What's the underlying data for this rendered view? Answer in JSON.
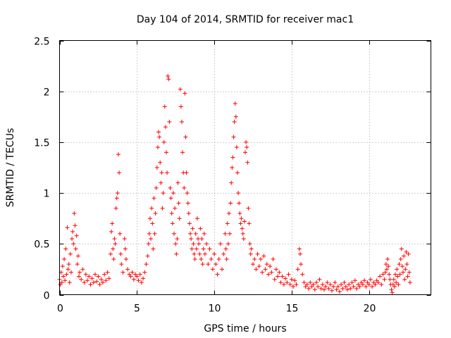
{
  "chart_data": {
    "type": "scatter",
    "title": "Day 104 of 2014, SRMTID for receiver mac1",
    "xlabel": "GPS time / hours",
    "ylabel": "SRMTID / TECUs",
    "xlim": [
      0,
      24
    ],
    "ylim": [
      0,
      2.5
    ],
    "xticks": [
      0,
      5,
      10,
      15,
      20
    ],
    "xtick_labels": [
      "0",
      "5",
      "10",
      "15",
      "20"
    ],
    "yticks": [
      0,
      0.5,
      1,
      1.5,
      2,
      2.5
    ],
    "ytick_labels": [
      "0",
      "0.5",
      "1",
      "1.5",
      "2",
      "2.5"
    ],
    "grid": true,
    "marker": "+",
    "color": "#ff0000",
    "series": [
      {
        "name": "mac1",
        "points": [
          [
            0.0,
            0.15
          ],
          [
            0.05,
            0.1
          ],
          [
            0.1,
            0.22
          ],
          [
            0.15,
            0.12
          ],
          [
            0.2,
            0.28
          ],
          [
            0.25,
            0.18
          ],
          [
            0.3,
            0.35
          ],
          [
            0.35,
            0.14
          ],
          [
            0.4,
            0.45
          ],
          [
            0.45,
            0.2
          ],
          [
            0.5,
            0.66
          ],
          [
            0.55,
            0.25
          ],
          [
            0.6,
            0.3
          ],
          [
            0.65,
            0.12
          ],
          [
            0.7,
            0.4
          ],
          [
            0.75,
            0.22
          ],
          [
            0.8,
            0.55
          ],
          [
            0.85,
            0.62
          ],
          [
            0.9,
            0.5
          ],
          [
            0.95,
            0.8
          ],
          [
            1.0,
            0.68
          ],
          [
            1.05,
            0.45
          ],
          [
            1.1,
            0.58
          ],
          [
            1.15,
            0.3
          ],
          [
            1.2,
            0.38
          ],
          [
            1.25,
            0.18
          ],
          [
            1.3,
            0.22
          ],
          [
            1.4,
            0.15
          ],
          [
            1.5,
            0.25
          ],
          [
            1.6,
            0.12
          ],
          [
            1.7,
            0.2
          ],
          [
            1.8,
            0.14
          ],
          [
            1.9,
            0.18
          ],
          [
            2.0,
            0.1
          ],
          [
            2.1,
            0.16
          ],
          [
            2.2,
            0.12
          ],
          [
            2.3,
            0.2
          ],
          [
            2.4,
            0.13
          ],
          [
            2.5,
            0.18
          ],
          [
            2.6,
            0.1
          ],
          [
            2.7,
            0.15
          ],
          [
            2.8,
            0.12
          ],
          [
            2.9,
            0.2
          ],
          [
            3.0,
            0.14
          ],
          [
            3.1,
            0.22
          ],
          [
            3.2,
            0.16
          ],
          [
            3.3,
            0.4
          ],
          [
            3.35,
            0.62
          ],
          [
            3.4,
            0.7
          ],
          [
            3.45,
            0.45
          ],
          [
            3.5,
            0.35
          ],
          [
            3.55,
            0.55
          ],
          [
            3.6,
            0.5
          ],
          [
            3.65,
            0.85
          ],
          [
            3.7,
            0.95
          ],
          [
            3.75,
            1.0
          ],
          [
            3.8,
            1.38
          ],
          [
            3.85,
            1.2
          ],
          [
            3.9,
            0.6
          ],
          [
            3.95,
            0.4
          ],
          [
            4.0,
            0.3
          ],
          [
            4.1,
            0.22
          ],
          [
            4.2,
            0.55
          ],
          [
            4.25,
            0.45
          ],
          [
            4.3,
            0.35
          ],
          [
            4.4,
            0.25
          ],
          [
            4.5,
            0.2
          ],
          [
            4.6,
            0.18
          ],
          [
            4.7,
            0.22
          ],
          [
            4.8,
            0.15
          ],
          [
            4.9,
            0.2
          ],
          [
            5.0,
            0.18
          ],
          [
            5.1,
            0.14
          ],
          [
            5.2,
            0.2
          ],
          [
            5.3,
            0.12
          ],
          [
            5.4,
            0.16
          ],
          [
            5.5,
            0.22
          ],
          [
            5.6,
            0.3
          ],
          [
            5.7,
            0.38
          ],
          [
            5.75,
            0.5
          ],
          [
            5.8,
            0.6
          ],
          [
            5.85,
            0.75
          ],
          [
            5.9,
            0.55
          ],
          [
            5.95,
            0.85
          ],
          [
            6.0,
            0.7
          ],
          [
            6.05,
            0.45
          ],
          [
            6.1,
            0.95
          ],
          [
            6.15,
            0.6
          ],
          [
            6.2,
            0.8
          ],
          [
            6.25,
            1.05
          ],
          [
            6.3,
            1.25
          ],
          [
            6.35,
            1.45
          ],
          [
            6.4,
            1.6
          ],
          [
            6.45,
            1.55
          ],
          [
            6.5,
            1.3
          ],
          [
            6.55,
            1.1
          ],
          [
            6.6,
            1.2
          ],
          [
            6.65,
            0.85
          ],
          [
            6.7,
            1.0
          ],
          [
            6.75,
            1.5
          ],
          [
            6.8,
            1.85
          ],
          [
            6.85,
            1.65
          ],
          [
            6.9,
            1.4
          ],
          [
            6.95,
            1.2
          ],
          [
            7.0,
            2.15
          ],
          [
            7.05,
            2.12
          ],
          [
            7.1,
            1.7
          ],
          [
            7.15,
            1.05
          ],
          [
            7.2,
            0.95
          ],
          [
            7.25,
            0.8
          ],
          [
            7.3,
            0.7
          ],
          [
            7.35,
            1.0
          ],
          [
            7.4,
            0.6
          ],
          [
            7.45,
            0.85
          ],
          [
            7.5,
            0.5
          ],
          [
            7.55,
            0.4
          ],
          [
            7.6,
            0.55
          ],
          [
            7.65,
            1.1
          ],
          [
            7.7,
            0.9
          ],
          [
            7.75,
            0.75
          ],
          [
            7.8,
            2.02
          ],
          [
            7.85,
            1.85
          ],
          [
            7.9,
            1.7
          ],
          [
            7.95,
            1.4
          ],
          [
            8.0,
            1.2
          ],
          [
            8.05,
            1.05
          ],
          [
            8.1,
            1.98
          ],
          [
            8.15,
            1.55
          ],
          [
            8.2,
            1.2
          ],
          [
            8.25,
            1.0
          ],
          [
            8.3,
            0.9
          ],
          [
            8.35,
            0.8
          ],
          [
            8.4,
            0.7
          ],
          [
            8.45,
            0.6
          ],
          [
            8.5,
            0.55
          ],
          [
            8.55,
            0.45
          ],
          [
            8.6,
            0.65
          ],
          [
            8.65,
            0.5
          ],
          [
            8.7,
            0.4
          ],
          [
            8.75,
            0.35
          ],
          [
            8.8,
            0.6
          ],
          [
            8.85,
            0.45
          ],
          [
            8.9,
            0.75
          ],
          [
            8.95,
            0.55
          ],
          [
            9.0,
            0.5
          ],
          [
            9.05,
            0.4
          ],
          [
            9.1,
            0.65
          ],
          [
            9.15,
            0.35
          ],
          [
            9.2,
            0.55
          ],
          [
            9.25,
            0.3
          ],
          [
            9.3,
            0.45
          ],
          [
            9.35,
            0.6
          ],
          [
            9.4,
            0.4
          ],
          [
            9.5,
            0.5
          ],
          [
            9.6,
            0.3
          ],
          [
            9.7,
            0.45
          ],
          [
            9.8,
            0.35
          ],
          [
            9.9,
            0.25
          ],
          [
            10.0,
            0.4
          ],
          [
            10.1,
            0.3
          ],
          [
            10.2,
            0.2
          ],
          [
            10.3,
            0.35
          ],
          [
            10.4,
            0.5
          ],
          [
            10.5,
            0.25
          ],
          [
            10.6,
            0.4
          ],
          [
            10.7,
            0.6
          ],
          [
            10.75,
            0.45
          ],
          [
            10.8,
            0.35
          ],
          [
            10.85,
            0.7
          ],
          [
            10.9,
            0.5
          ],
          [
            10.95,
            0.8
          ],
          [
            11.0,
            0.6
          ],
          [
            11.05,
            0.9
          ],
          [
            11.1,
            1.1
          ],
          [
            11.15,
            1.25
          ],
          [
            11.2,
            1.35
          ],
          [
            11.25,
            1.55
          ],
          [
            11.3,
            1.7
          ],
          [
            11.35,
            1.88
          ],
          [
            11.4,
            1.75
          ],
          [
            11.45,
            1.45
          ],
          [
            11.5,
            1.2
          ],
          [
            11.55,
            1.0
          ],
          [
            11.6,
            0.9
          ],
          [
            11.65,
            0.8
          ],
          [
            11.7,
            0.7
          ],
          [
            11.75,
            0.75
          ],
          [
            11.8,
            0.65
          ],
          [
            11.85,
            0.6
          ],
          [
            11.9,
            0.55
          ],
          [
            11.95,
            0.72
          ],
          [
            12.0,
            1.4
          ],
          [
            12.05,
            1.5
          ],
          [
            12.1,
            1.45
          ],
          [
            12.15,
            1.3
          ],
          [
            12.2,
            0.85
          ],
          [
            12.25,
            0.7
          ],
          [
            12.3,
            0.5
          ],
          [
            12.35,
            0.4
          ],
          [
            12.4,
            0.45
          ],
          [
            12.5,
            0.3
          ],
          [
            12.6,
            0.35
          ],
          [
            12.7,
            0.25
          ],
          [
            12.8,
            0.4
          ],
          [
            12.9,
            0.28
          ],
          [
            13.0,
            0.35
          ],
          [
            13.1,
            0.22
          ],
          [
            13.2,
            0.38
          ],
          [
            13.3,
            0.25
          ],
          [
            13.4,
            0.3
          ],
          [
            13.5,
            0.2
          ],
          [
            13.6,
            0.28
          ],
          [
            13.7,
            0.22
          ],
          [
            13.8,
            0.35
          ],
          [
            13.9,
            0.15
          ],
          [
            14.0,
            0.25
          ],
          [
            14.1,
            0.18
          ],
          [
            14.2,
            0.22
          ],
          [
            14.3,
            0.12
          ],
          [
            14.4,
            0.18
          ],
          [
            14.5,
            0.1
          ],
          [
            14.6,
            0.16
          ],
          [
            14.7,
            0.12
          ],
          [
            14.8,
            0.2
          ],
          [
            14.9,
            0.1
          ],
          [
            15.0,
            0.15
          ],
          [
            15.1,
            0.08
          ],
          [
            15.2,
            0.14
          ],
          [
            15.3,
            0.1
          ],
          [
            15.4,
            0.25
          ],
          [
            15.5,
            0.45
          ],
          [
            15.55,
            0.4
          ],
          [
            15.6,
            0.3
          ],
          [
            15.7,
            0.2
          ],
          [
            15.8,
            0.12
          ],
          [
            15.9,
            0.08
          ],
          [
            16.0,
            0.1
          ],
          [
            16.1,
            0.06
          ],
          [
            16.2,
            0.12
          ],
          [
            16.3,
            0.08
          ],
          [
            16.4,
            0.1
          ],
          [
            16.5,
            0.05
          ],
          [
            16.6,
            0.12
          ],
          [
            16.7,
            0.08
          ],
          [
            16.8,
            0.15
          ],
          [
            16.9,
            0.06
          ],
          [
            17.0,
            0.1
          ],
          [
            17.1,
            0.05
          ],
          [
            17.2,
            0.08
          ],
          [
            17.3,
            0.12
          ],
          [
            17.4,
            0.06
          ],
          [
            17.5,
            0.1
          ],
          [
            17.6,
            0.04
          ],
          [
            17.7,
            0.08
          ],
          [
            17.8,
            0.12
          ],
          [
            17.9,
            0.05
          ],
          [
            18.0,
            0.08
          ],
          [
            18.1,
            0.03
          ],
          [
            18.2,
            0.1
          ],
          [
            18.3,
            0.06
          ],
          [
            18.4,
            0.12
          ],
          [
            18.5,
            0.08
          ],
          [
            18.6,
            0.05
          ],
          [
            18.7,
            0.1
          ],
          [
            18.8,
            0.06
          ],
          [
            18.9,
            0.12
          ],
          [
            19.0,
            0.08
          ],
          [
            19.1,
            0.14
          ],
          [
            19.2,
            0.06
          ],
          [
            19.3,
            0.1
          ],
          [
            19.4,
            0.08
          ],
          [
            19.5,
            0.12
          ],
          [
            19.6,
            0.1
          ],
          [
            19.7,
            0.14
          ],
          [
            19.8,
            0.08
          ],
          [
            19.9,
            0.12
          ],
          [
            20.0,
            0.1
          ],
          [
            20.1,
            0.15
          ],
          [
            20.2,
            0.08
          ],
          [
            20.3,
            0.12
          ],
          [
            20.4,
            0.1
          ],
          [
            20.5,
            0.14
          ],
          [
            20.6,
            0.12
          ],
          [
            20.7,
            0.18
          ],
          [
            20.8,
            0.1
          ],
          [
            20.9,
            0.2
          ],
          [
            21.0,
            0.15
          ],
          [
            21.05,
            0.22
          ],
          [
            21.1,
            0.3
          ],
          [
            21.15,
            0.25
          ],
          [
            21.2,
            0.35
          ],
          [
            21.25,
            0.28
          ],
          [
            21.3,
            0.2
          ],
          [
            21.35,
            0.15
          ],
          [
            21.4,
            0.1
          ],
          [
            21.45,
            0.05
          ],
          [
            21.5,
            0.02
          ],
          [
            21.55,
            0.1
          ],
          [
            21.6,
            0.15
          ],
          [
            21.65,
            0.08
          ],
          [
            21.7,
            0.2
          ],
          [
            21.75,
            0.12
          ],
          [
            21.8,
            0.25
          ],
          [
            21.85,
            0.18
          ],
          [
            21.9,
            0.1
          ],
          [
            21.95,
            0.3
          ],
          [
            22.0,
            0.2
          ],
          [
            22.05,
            0.35
          ],
          [
            22.1,
            0.45
          ],
          [
            22.15,
            0.28
          ],
          [
            22.2,
            0.22
          ],
          [
            22.25,
            0.38
          ],
          [
            22.3,
            0.15
          ],
          [
            22.35,
            0.25
          ],
          [
            22.4,
            0.42
          ],
          [
            22.45,
            0.3
          ],
          [
            22.5,
            0.18
          ],
          [
            22.55,
            0.4
          ],
          [
            22.6,
            0.22
          ],
          [
            22.65,
            0.12
          ]
        ]
      }
    ]
  }
}
